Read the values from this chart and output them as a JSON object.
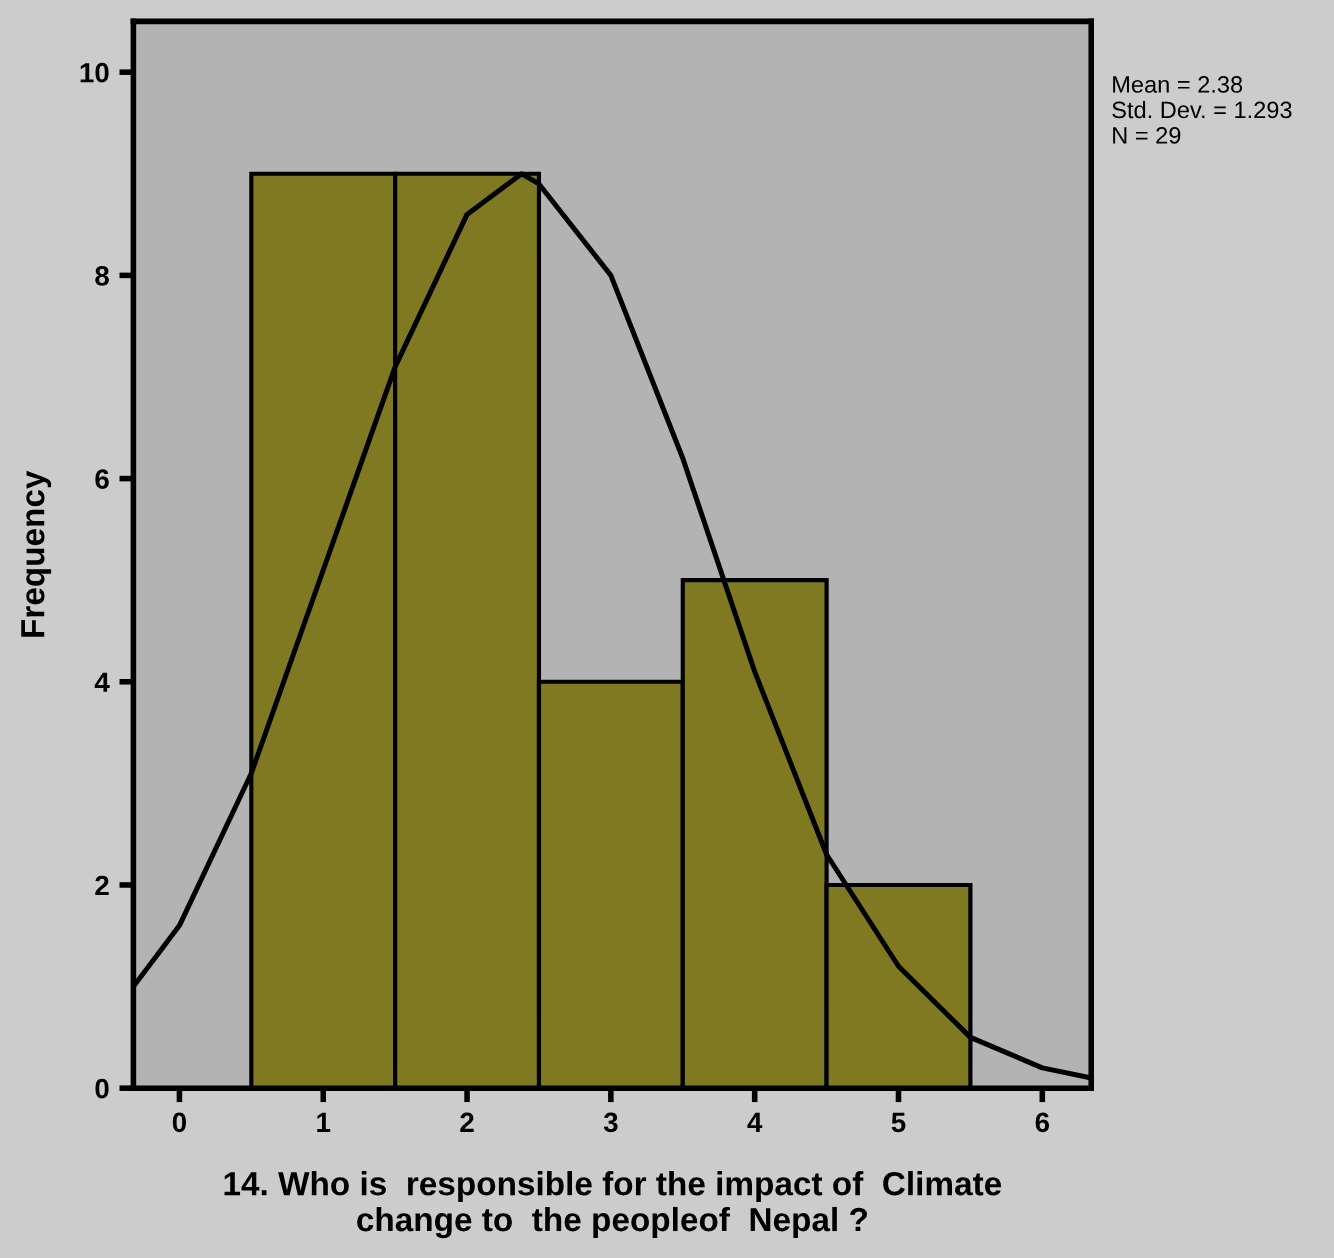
{
  "chart_data": {
    "type": "histogram",
    "xlabel": "14. Who is  responsible for the impact of  Climate\nchange to  the peopleof  Nepal ?",
    "ylabel": "Frequency",
    "bins": [
      0.5,
      1.5,
      2.5,
      3.5,
      4.5,
      5.5
    ],
    "values": [
      9,
      9,
      4,
      5,
      2
    ],
    "color": "#7f7a22",
    "series": [
      {
        "type": "line",
        "color": "#000000",
        "x": [
          -0.32,
          0,
          0.5,
          1,
          1.5,
          2,
          2.38,
          2.5,
          3,
          3.5,
          4,
          4.5,
          5,
          5.5,
          6,
          6.34
        ],
        "values": [
          1.0,
          1.6,
          3.1,
          5.1,
          7.1,
          8.6,
          9.0,
          8.9,
          8.0,
          6.2,
          4.1,
          2.3,
          1.2,
          0.5,
          0.2,
          0.1
        ]
      }
    ],
    "xlim": [
      -0.32,
      6.34
    ],
    "xticks": [
      0,
      1,
      2,
      3,
      4,
      5,
      6
    ],
    "ylim": [
      0,
      10.5
    ],
    "yticks": [
      0,
      2,
      4,
      6,
      8,
      10
    ],
    "annotations": [
      "Mean = 2.38\nStd. Dev. = 1.293\nN = 29"
    ]
  }
}
